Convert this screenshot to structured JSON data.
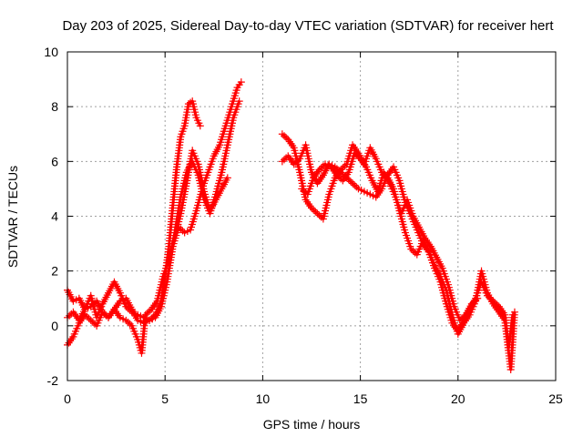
{
  "chart_data": {
    "type": "scatter",
    "title": "Day 203 of 2025, Sidereal Day-to-day VTEC variation (SDTVAR) for receiver hert",
    "xlabel": "GPS time / hours",
    "ylabel": "SDTVAR / TECUs",
    "xlim": [
      0,
      25
    ],
    "ylim": [
      -2,
      10
    ],
    "x_ticks": [
      0,
      5,
      10,
      15,
      20,
      25
    ],
    "y_ticks": [
      -2,
      0,
      2,
      4,
      6,
      8,
      10
    ],
    "grid": true,
    "marker": "+",
    "colors": {
      "series": "#ff0000",
      "grid": "#a0a0a0",
      "axis": "#000000"
    },
    "series": [
      {
        "name": "trace-1",
        "x": [
          0.0,
          0.3,
          0.6,
          0.9,
          1.2,
          1.5,
          1.8,
          2.1,
          2.4,
          2.7,
          3.0,
          3.3,
          3.6,
          3.9,
          4.2,
          4.5,
          4.8,
          5.0,
          5.2,
          5.4,
          5.6,
          5.8,
          6.0,
          6.2,
          6.4,
          6.6,
          6.8
        ],
        "y": [
          1.3,
          0.9,
          1.0,
          0.6,
          1.1,
          0.3,
          0.8,
          1.2,
          1.6,
          1.2,
          0.7,
          0.5,
          0.4,
          0.3,
          0.2,
          0.4,
          0.9,
          1.8,
          2.9,
          4.4,
          5.8,
          6.9,
          7.3,
          8.1,
          8.2,
          7.6,
          7.3
        ]
      },
      {
        "name": "trace-2",
        "x": [
          0.0,
          0.3,
          0.6,
          0.9,
          1.2,
          1.5,
          1.8,
          2.1,
          2.4,
          2.7,
          3.0,
          3.3,
          3.6,
          3.9,
          4.2,
          4.5,
          4.8,
          5.1,
          5.4,
          5.7,
          6.0,
          6.3,
          6.6,
          6.9,
          7.2,
          7.5,
          7.8,
          8.1,
          8.4,
          8.7,
          8.9
        ],
        "y": [
          0.3,
          0.5,
          0.2,
          0.6,
          0.7,
          0.9,
          0.5,
          0.3,
          0.6,
          0.9,
          1.0,
          0.6,
          0.2,
          0.1,
          0.2,
          0.3,
          0.7,
          1.6,
          2.9,
          3.6,
          3.4,
          3.5,
          4.2,
          5.0,
          5.6,
          6.2,
          6.6,
          7.3,
          8.0,
          8.7,
          8.9
        ]
      },
      {
        "name": "trace-3",
        "x": [
          0.0,
          0.3,
          0.6,
          0.9,
          1.2,
          1.5,
          1.8,
          2.1,
          2.4,
          2.7,
          3.0,
          3.3,
          3.6,
          3.8,
          4.0,
          4.3,
          4.6,
          4.9,
          5.2,
          5.5,
          5.8,
          6.1,
          6.4,
          6.7,
          7.0,
          7.3,
          7.6,
          7.9,
          8.2,
          8.5,
          8.8
        ],
        "y": [
          -0.7,
          -0.4,
          0.1,
          0.4,
          0.2,
          0.0,
          0.5,
          0.3,
          0.6,
          0.3,
          0.2,
          0.0,
          -0.5,
          -1.0,
          0.4,
          0.6,
          0.9,
          1.8,
          2.4,
          3.4,
          4.7,
          5.6,
          6.0,
          5.5,
          4.6,
          4.1,
          4.8,
          5.6,
          6.6,
          7.6,
          8.2
        ]
      },
      {
        "name": "trace-4",
        "x": [
          5.5,
          5.8,
          6.1,
          6.4,
          6.7,
          7.0,
          7.3,
          7.6,
          7.9,
          8.2
        ],
        "y": [
          3.2,
          4.1,
          5.2,
          6.4,
          5.9,
          4.9,
          4.2,
          4.6,
          5.0,
          5.4
        ]
      },
      {
        "name": "trace-5",
        "x": [
          11.0,
          11.3,
          11.6,
          11.9,
          12.2,
          12.5,
          12.8,
          13.1,
          13.4,
          13.7,
          14.0,
          14.3,
          14.6,
          14.9,
          15.2,
          15.5,
          15.8,
          16.1,
          16.4,
          16.7,
          17.0,
          17.3,
          17.6,
          17.9,
          18.2,
          18.5,
          18.8,
          19.1,
          19.4,
          19.7,
          20.0,
          20.3,
          20.6,
          20.9,
          21.2,
          21.5,
          21.8,
          22.1,
          22.4,
          22.6,
          22.8
        ],
        "y": [
          7.0,
          6.8,
          6.5,
          5.6,
          4.6,
          4.3,
          4.1,
          3.9,
          4.8,
          5.4,
          5.7,
          5.9,
          6.6,
          6.3,
          5.9,
          6.5,
          6.1,
          5.6,
          5.4,
          5.0,
          4.2,
          3.4,
          2.8,
          2.6,
          3.1,
          2.7,
          2.1,
          1.6,
          0.8,
          0.1,
          -0.2,
          0.2,
          0.6,
          1.0,
          1.6,
          1.1,
          0.9,
          0.7,
          0.4,
          -0.8,
          0.4
        ]
      },
      {
        "name": "trace-6",
        "x": [
          11.0,
          11.3,
          11.6,
          11.9,
          12.2,
          12.5,
          12.8,
          13.1,
          13.4,
          13.7,
          14.0,
          14.3,
          14.6,
          14.9,
          15.2,
          15.5,
          15.8,
          16.1,
          16.4,
          16.7,
          17.0,
          17.3,
          17.6,
          17.9,
          18.2,
          18.5,
          18.8,
          19.1,
          19.4,
          19.7,
          20.0,
          20.3,
          20.6,
          20.9,
          21.2,
          21.5,
          21.8,
          22.1,
          22.4,
          22.7,
          22.9
        ],
        "y": [
          6.0,
          6.2,
          5.9,
          6.1,
          6.6,
          5.6,
          5.2,
          5.5,
          5.9,
          5.8,
          5.6,
          5.4,
          5.2,
          5.0,
          4.9,
          4.8,
          4.7,
          5.0,
          5.5,
          5.8,
          5.3,
          4.5,
          4.0,
          3.5,
          3.0,
          2.7,
          2.2,
          1.8,
          1.3,
          0.4,
          -0.3,
          0.1,
          0.4,
          0.9,
          2.0,
          1.2,
          0.8,
          0.5,
          0.2,
          -1.6,
          0.5
        ]
      },
      {
        "name": "trace-7",
        "x": [
          12.0,
          12.3,
          12.6,
          12.9,
          13.2,
          13.5,
          13.8,
          14.1,
          14.4,
          14.7,
          15.0,
          15.3,
          15.6,
          15.9,
          16.2,
          16.5,
          16.8,
          17.1,
          17.4,
          17.7,
          18.0,
          18.3,
          18.6,
          18.9,
          19.2,
          19.5,
          19.8,
          20.1,
          20.4,
          20.7,
          21.0
        ],
        "y": [
          5.0,
          4.8,
          5.4,
          5.7,
          5.9,
          5.8,
          5.5,
          5.3,
          5.6,
          6.3,
          6.1,
          5.8,
          5.3,
          4.9,
          5.6,
          5.2,
          4.7,
          4.1,
          4.6,
          4.0,
          3.6,
          3.2,
          2.9,
          2.5,
          2.1,
          1.5,
          0.7,
          0.2,
          0.4,
          0.8,
          1.0
        ]
      }
    ]
  }
}
